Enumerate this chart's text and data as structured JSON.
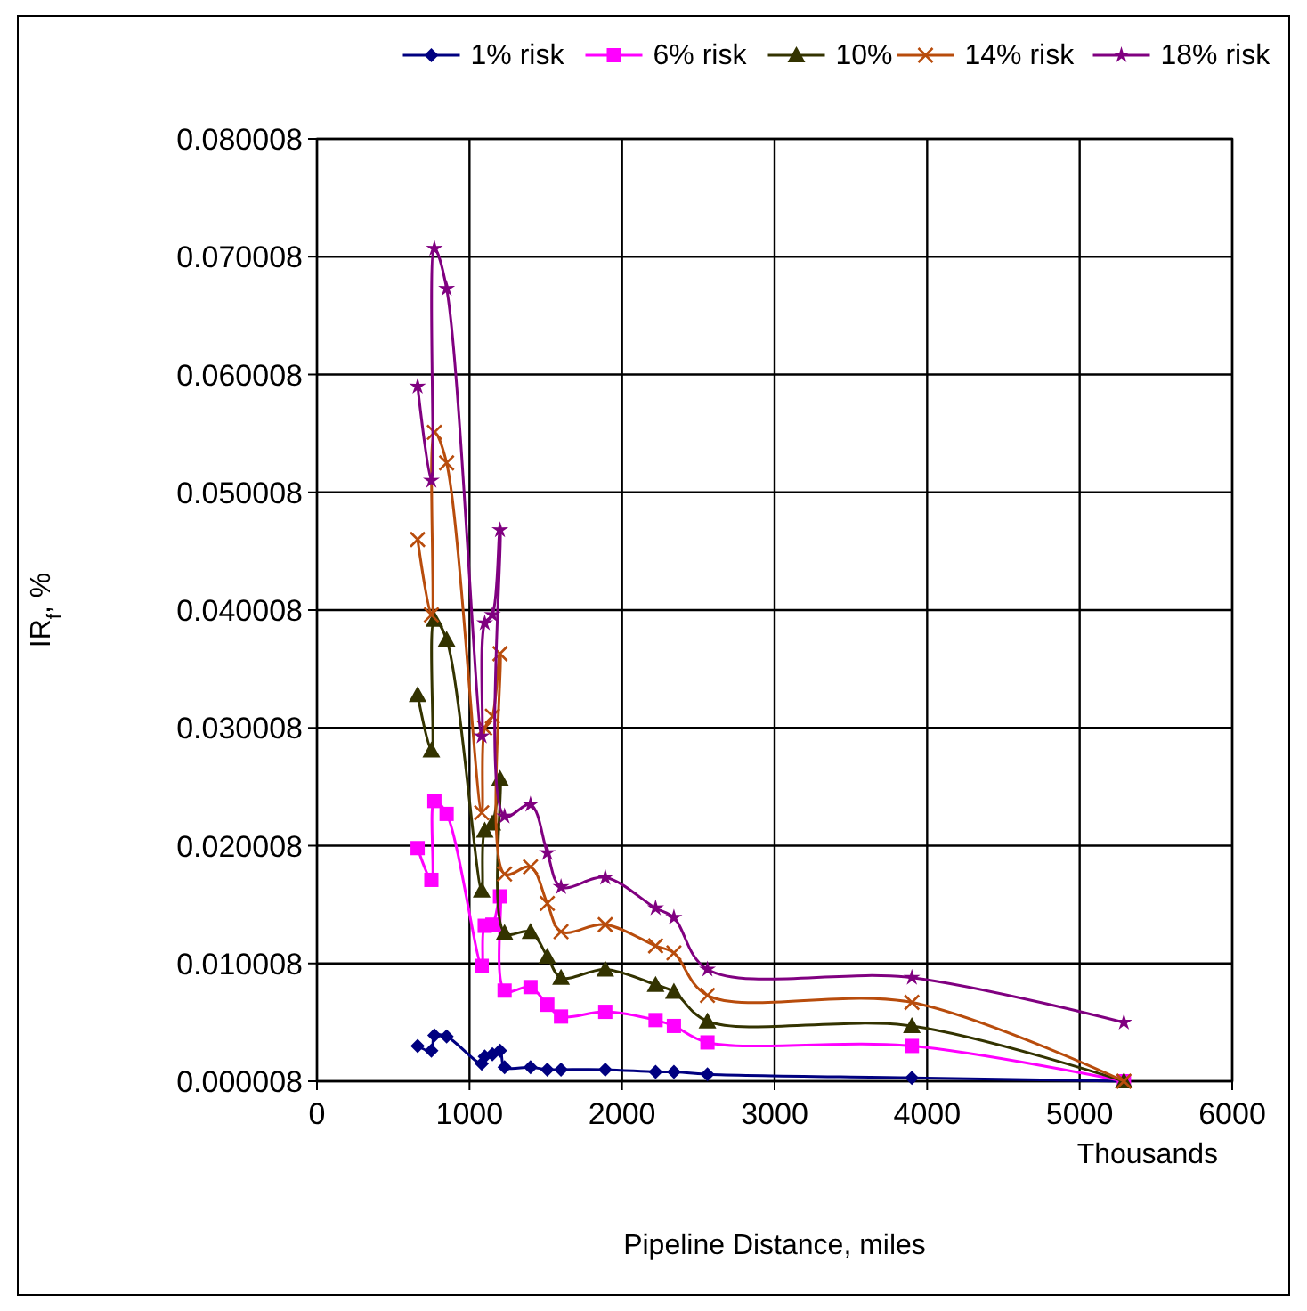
{
  "chart_data": {
    "type": "line",
    "xlabel": "Pipeline Distance, miles",
    "ylabel": "IR$_{f}$, %",
    "annotations": [
      "Thousands"
    ],
    "x": [
      660,
      750,
      770,
      850,
      1080,
      1100,
      1150,
      1200,
      1230,
      1400,
      1510,
      1600,
      1890,
      2220,
      2340,
      2560,
      3900,
      5290
    ],
    "xlim": [
      0,
      6000
    ],
    "xticks": [
      0,
      1000,
      2000,
      3000,
      4000,
      5000,
      6000
    ],
    "ylim": [
      8e-06,
      0.080008
    ],
    "yticks": [
      {
        "value": 8e-06,
        "label": "0.000008"
      },
      0.010008,
      0.020008,
      0.030008,
      0.040008,
      0.050008,
      0.060008,
      0.070008,
      0.080008
    ],
    "grid": true,
    "legend": "top",
    "line_style": "solid",
    "series": [
      {
        "name": "1% risk",
        "color": "#000080",
        "marker": "diamond",
        "values": [
          0.003,
          0.0026,
          0.0039,
          0.0038,
          0.0015,
          0.0021,
          0.0023,
          0.0026,
          0.0012,
          0.0012,
          0.001,
          0.001,
          0.001,
          0.0008,
          0.0008,
          0.0006,
          0.0003,
          1e-05
        ]
      },
      {
        "name": "6% risk",
        "color": "#ff00ff",
        "marker": "square",
        "values": [
          0.0198,
          0.0171,
          0.0238,
          0.0227,
          0.0098,
          0.0132,
          0.0133,
          0.0157,
          0.0077,
          0.008,
          0.0065,
          0.0055,
          0.0059,
          0.0052,
          0.0047,
          0.0033,
          0.003,
          1e-05
        ]
      },
      {
        "name": "10%",
        "color": "#333300",
        "marker": "triangle",
        "values": [
          0.0328,
          0.0281,
          0.0392,
          0.0375,
          0.0162,
          0.0213,
          0.0219,
          0.0257,
          0.0126,
          0.0127,
          0.0106,
          0.0088,
          0.0095,
          0.0082,
          0.0076,
          0.0051,
          0.0047,
          1e-05
        ]
      },
      {
        "name": "14% risk",
        "color": "#b84c0c",
        "marker": "cross",
        "values": [
          0.046,
          0.0396,
          0.0551,
          0.0525,
          0.0228,
          0.03,
          0.031,
          0.0363,
          0.0176,
          0.0182,
          0.0151,
          0.0127,
          0.0133,
          0.0115,
          0.0109,
          0.0073,
          0.0067,
          1e-05
        ]
      },
      {
        "name": "18% risk",
        "color": "#800080",
        "marker": "star",
        "values": [
          0.059,
          0.051,
          0.0707,
          0.0673,
          0.0293,
          0.0389,
          0.0396,
          0.0468,
          0.0225,
          0.0235,
          0.0194,
          0.0165,
          0.0173,
          0.0147,
          0.0139,
          0.0095,
          0.0088,
          0.005
        ]
      }
    ]
  }
}
